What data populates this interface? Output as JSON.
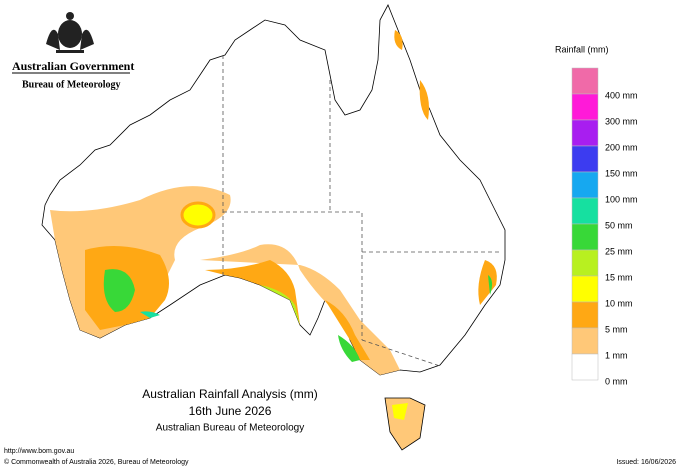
{
  "header": {
    "government": "Australian Government",
    "bureau": "Bureau of Meteorology"
  },
  "legend": {
    "title": "Rainfall (mm)",
    "items": [
      {
        "color": "#f06aa8",
        "label": "400 mm"
      },
      {
        "color": "#ff1ad8",
        "label": "300 mm"
      },
      {
        "color": "#a81ef0",
        "label": "200 mm"
      },
      {
        "color": "#3c3cf0",
        "label": "150 mm"
      },
      {
        "color": "#16a8f0",
        "label": "100 mm"
      },
      {
        "color": "#16e0a0",
        "label": "50 mm"
      },
      {
        "color": "#38d838",
        "label": "25 mm"
      },
      {
        "color": "#b8f020",
        "label": "15 mm"
      },
      {
        "color": "#ffff00",
        "label": "10 mm"
      },
      {
        "color": "#ffa814",
        "label": "5 mm"
      },
      {
        "color": "#ffc878",
        "label": "1 mm"
      },
      {
        "color": "#ffffff",
        "label": "0 mm"
      }
    ]
  },
  "footer": {
    "title": "Australian Rainfall Analysis (mm)",
    "date": "16th June 2026",
    "agency": "Australian Bureau of Meteorology",
    "url": "http://www.bom.gov.au",
    "copyright": "© Commonwealth of Australia 2026, Bureau of Meteorology",
    "issued": "Issued: 16/06/2026"
  }
}
